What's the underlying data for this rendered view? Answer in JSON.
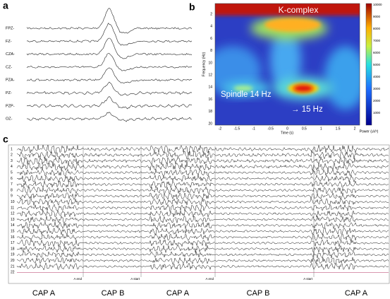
{
  "panel_a": {
    "label": "a",
    "channels": [
      "FPZ-",
      "FZ-",
      "CZA-",
      "CZ-",
      "PZA-",
      "PZ-",
      "PZP-",
      "OZ-"
    ]
  },
  "panel_b": {
    "label": "b",
    "k_complex": "K-complex",
    "spindle": "Spindle 14 Hz",
    "shift": "→ 15 Hz",
    "y_label": "Frequency (Hz)",
    "x_label": "Time (s)",
    "colorbar_label": "Power (uV²)",
    "x_ticks": [
      -2,
      -1.5,
      -1,
      -0.5,
      0,
      0.5,
      1,
      1.5,
      2
    ],
    "y_ticks": [
      2,
      4,
      6,
      8,
      10,
      12,
      14,
      16,
      18,
      20
    ],
    "colorbar_ticks": [
      10000,
      9000,
      8000,
      7000,
      6000,
      5000,
      4000,
      3000,
      2000,
      1000
    ]
  },
  "panel_c": {
    "label": "c",
    "channel_numbers": [
      1,
      2,
      3,
      4,
      5,
      6,
      7,
      8,
      9,
      10,
      11,
      12,
      13,
      14,
      15,
      16,
      17,
      18,
      19,
      20,
      21,
      22
    ],
    "markers": [
      "A end",
      "A start",
      "A end",
      "A start"
    ],
    "phases": [
      "CAP A",
      "CAP B",
      "CAP A",
      "CAP B",
      "CAP A"
    ]
  }
}
